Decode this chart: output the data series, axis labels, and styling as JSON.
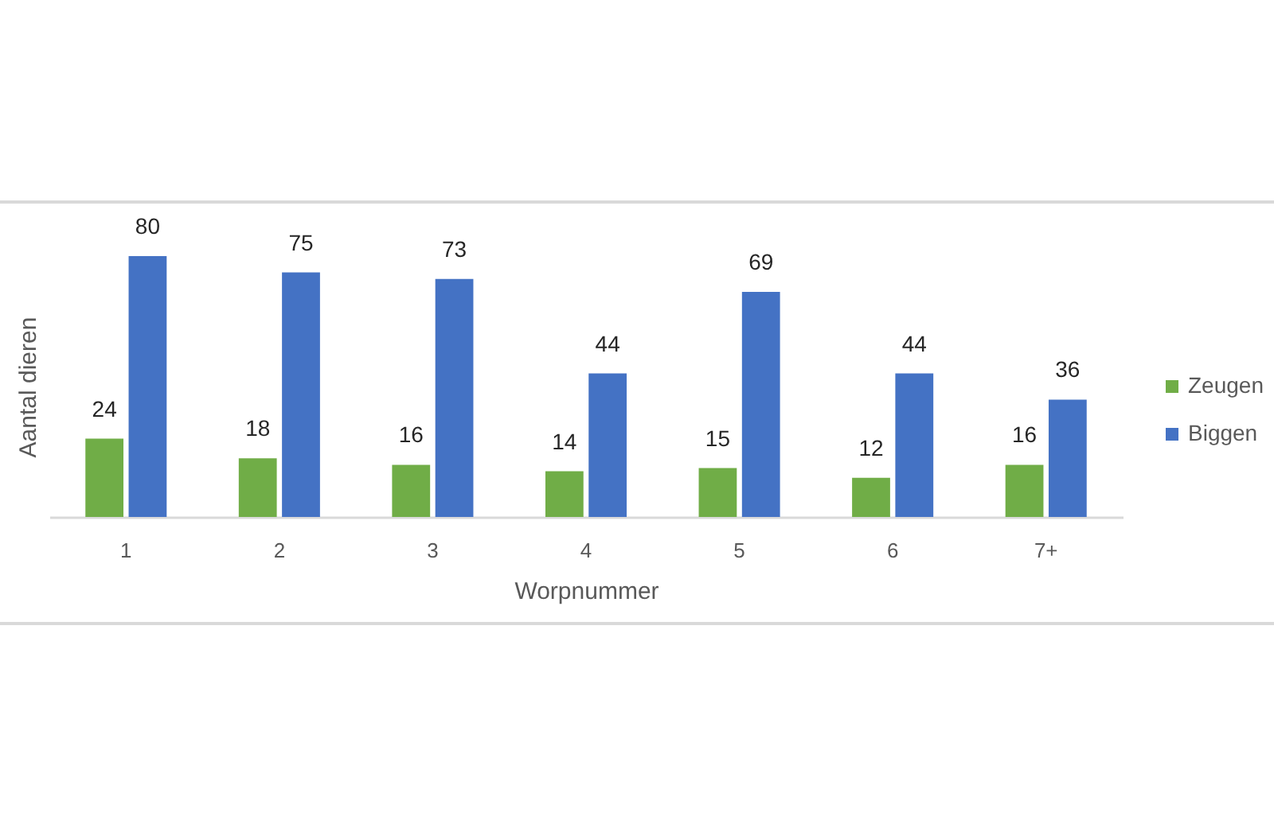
{
  "chart_data": {
    "type": "bar",
    "xlabel": "Worpnummer",
    "ylabel": "Aantal dieren",
    "categories": [
      "1",
      "2",
      "3",
      "4",
      "5",
      "6",
      "7+"
    ],
    "series": [
      {
        "name": "Zeugen",
        "color": "#70ad47",
        "values": [
          24,
          18,
          16,
          14,
          15,
          12,
          16
        ]
      },
      {
        "name": "Biggen",
        "color": "#4472c4",
        "values": [
          80,
          75,
          73,
          44,
          69,
          44,
          36
        ]
      }
    ],
    "ylim": [
      0,
      80
    ],
    "data_labels": true,
    "legend": "right",
    "tick_labels": "x",
    "grid": false
  }
}
